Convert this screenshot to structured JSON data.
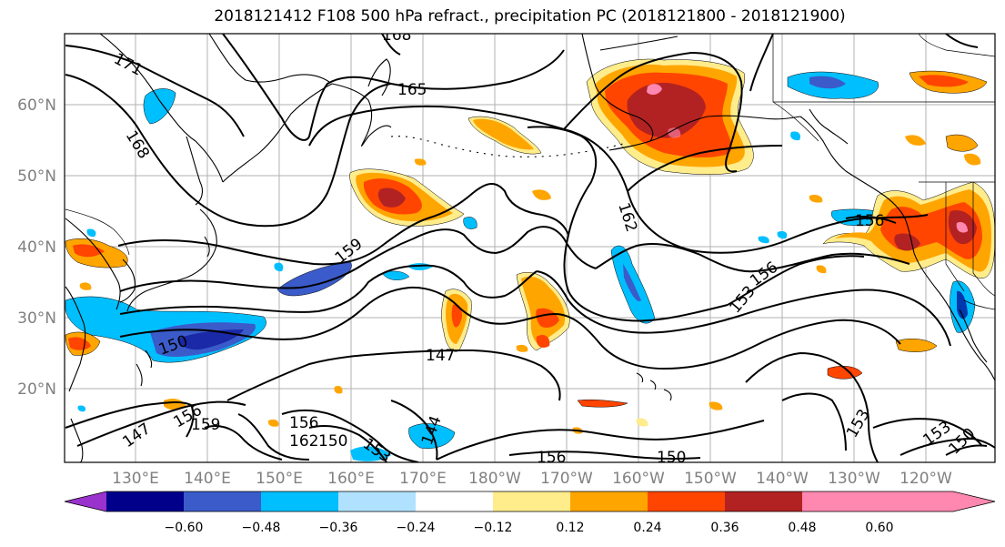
{
  "title": "2018121412 F108 500 hPa refract., precipitation PC (2018121800 - 2018121900)",
  "lat_labels": [
    "60°N",
    "50°N",
    "40°N",
    "30°N",
    "20°N"
  ],
  "lon_labels": [
    "130°E",
    "140°E",
    "150°E",
    "160°E",
    "170°E",
    "180°W",
    "170°W",
    "160°W",
    "150°W",
    "140°W",
    "130°W",
    "120°W"
  ],
  "contour_labels": [
    "171",
    "168",
    "165",
    "162",
    "159",
    "156",
    "153",
    "150",
    "147",
    "144",
    "159",
    "156",
    "162",
    "153",
    "156",
    "156",
    "153",
    "150",
    "147",
    "150",
    "156",
    "153",
    "150",
    "168"
  ],
  "colorbar": {
    "ticks": [
      "−0.60",
      "−0.48",
      "−0.36",
      "−0.24",
      "−0.12",
      "0.12",
      "0.24",
      "0.36",
      "0.48",
      "0.60"
    ],
    "colors": [
      "#9a32cd",
      "#00008b",
      "#3a5bc9",
      "#00bfff",
      "#b0e2ff",
      "#ffffff",
      "#ffec8b",
      "#ffa500",
      "#ff4500",
      "#b22222",
      "#ff88b0"
    ]
  }
}
